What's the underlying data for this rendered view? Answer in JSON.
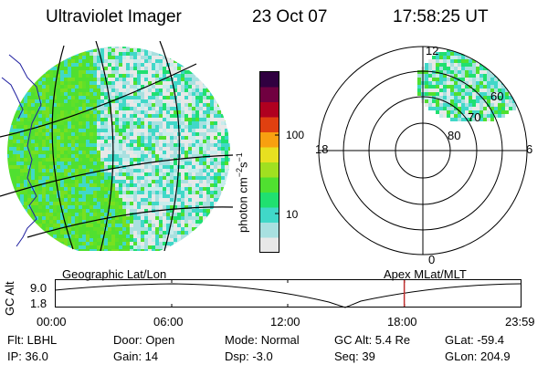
{
  "header": {
    "title": "Ultraviolet Imager",
    "date": "23 Oct 07",
    "time": "17:58:25 UT"
  },
  "colorbar": {
    "unit_main": "photon cm",
    "unit_exp1": "−2",
    "unit_s": "s",
    "unit_exp2": "−1",
    "ticks": [
      "100",
      "10"
    ],
    "colors": [
      "#e8e8e8",
      "#a8e0e0",
      "#40d8c8",
      "#20e070",
      "#50e030",
      "#a0e020",
      "#e8e020",
      "#f8a010",
      "#e04010",
      "#b00020",
      "#700040",
      "#300040"
    ]
  },
  "polar_plot": {
    "mlt_labels": {
      "top": "12",
      "left": "18",
      "right": "6",
      "bottom": "0"
    },
    "lat_labels": [
      "60",
      "70",
      "80"
    ]
  },
  "timeline": {
    "left_label": "Geographic Lat/Lon",
    "right_label": "Apex  MLat/MLT",
    "axis_title": "GC Alt",
    "y_top": "9.0",
    "y_bottom": "1.8",
    "time_ticks": [
      "00:00",
      "06:00",
      "12:00",
      "18:00",
      "23:59"
    ],
    "current_time_hours": 17.97
  },
  "status": {
    "flt": "Flt: LBHL",
    "ip": "IP: 36.0",
    "door": "Door: Open",
    "gain": "Gain: 14",
    "mode": "Mode: Normal",
    "dsp": "Dsp:    -3.0",
    "gc_alt": "GC Alt: 5.4 Re",
    "seq": "Seq: 39",
    "glat": "GLat: -59.4",
    "glon": "GLon: 204.9"
  }
}
